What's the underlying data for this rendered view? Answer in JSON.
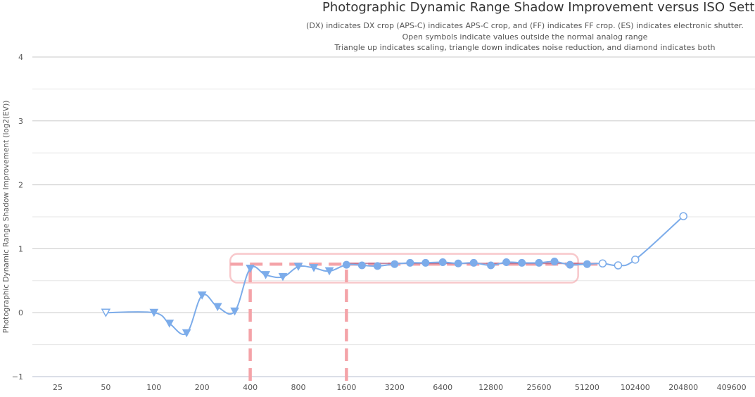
{
  "chart_data": {
    "type": "line",
    "title": "Photographic Dynamic Range Shadow Improvement versus ISO Setting",
    "subtitle_lines": [
      "(DX) indicates DX crop (APS-C) indicates APS-C crop, and (FF) indicates FF crop. (ES) indicates electronic shutter.",
      "Open symbols indicate values outside the normal analog range",
      "Triangle up indicates scaling, triangle down indicates noise reduction, and diamond indicates both"
    ],
    "ylabel": "Photographic Dynamic Range Shadow Improvement (log2(EV))",
    "xlabel": "",
    "x_scale": "log2",
    "x_ticks": [
      25,
      50,
      100,
      200,
      400,
      800,
      1600,
      3200,
      6400,
      12800,
      25600,
      51200,
      102400,
      204800,
      409600
    ],
    "y_ticks": [
      -1,
      0,
      1,
      2,
      3,
      4
    ],
    "ylim": [
      -1,
      4
    ],
    "grid": true,
    "series": [
      {
        "color": "#7cacea",
        "points": [
          {
            "x": 50,
            "y": 0,
            "marker": "triangle-down-open"
          },
          {
            "x": 100,
            "y": 0,
            "marker": "triangle-down"
          },
          {
            "x": 125,
            "y": -0.17,
            "marker": "triangle-down"
          },
          {
            "x": 160,
            "y": -0.32,
            "marker": "triangle-down"
          },
          {
            "x": 200,
            "y": 0.27,
            "marker": "triangle-down"
          },
          {
            "x": 250,
            "y": 0.09,
            "marker": "triangle-down"
          },
          {
            "x": 320,
            "y": 0.02,
            "marker": "triangle-down"
          },
          {
            "x": 400,
            "y": 0.69,
            "marker": "triangle-down"
          },
          {
            "x": 500,
            "y": 0.59,
            "marker": "triangle-down"
          },
          {
            "x": 640,
            "y": 0.56,
            "marker": "triangle-down"
          },
          {
            "x": 800,
            "y": 0.72,
            "marker": "triangle-down"
          },
          {
            "x": 1000,
            "y": 0.7,
            "marker": "triangle-down"
          },
          {
            "x": 1250,
            "y": 0.65,
            "marker": "triangle-down"
          },
          {
            "x": 1600,
            "y": 0.75,
            "marker": "circle"
          },
          {
            "x": 2000,
            "y": 0.74,
            "marker": "circle"
          },
          {
            "x": 2500,
            "y": 0.73,
            "marker": "circle"
          },
          {
            "x": 3200,
            "y": 0.76,
            "marker": "circle"
          },
          {
            "x": 4000,
            "y": 0.78,
            "marker": "circle"
          },
          {
            "x": 5000,
            "y": 0.78,
            "marker": "circle"
          },
          {
            "x": 6400,
            "y": 0.79,
            "marker": "circle"
          },
          {
            "x": 8000,
            "y": 0.77,
            "marker": "circle"
          },
          {
            "x": 10000,
            "y": 0.78,
            "marker": "circle"
          },
          {
            "x": 12800,
            "y": 0.74,
            "marker": "circle"
          },
          {
            "x": 16000,
            "y": 0.79,
            "marker": "circle"
          },
          {
            "x": 20000,
            "y": 0.78,
            "marker": "circle"
          },
          {
            "x": 25600,
            "y": 0.78,
            "marker": "circle"
          },
          {
            "x": 32000,
            "y": 0.8,
            "marker": "circle"
          },
          {
            "x": 40000,
            "y": 0.75,
            "marker": "circle"
          },
          {
            "x": 51200,
            "y": 0.76,
            "marker": "circle"
          },
          {
            "x": 64000,
            "y": 0.77,
            "marker": "circle-open"
          },
          {
            "x": 80000,
            "y": 0.74,
            "marker": "circle-open"
          },
          {
            "x": 102400,
            "y": 0.83,
            "marker": "circle-open"
          },
          {
            "x": 204800,
            "y": 1.51,
            "marker": "circle-open"
          }
        ]
      }
    ],
    "annotations": {
      "color": "#f4a3a8",
      "dashed_horizontal": {
        "y": 0.76,
        "x_from": 300,
        "x_to": 64000
      },
      "dashed_verticals": [
        {
          "x": 400,
          "y_from": -1,
          "y_to": 0.76
        },
        {
          "x": 1600,
          "y_from": -1,
          "y_to": 0.76
        }
      ],
      "box": {
        "x_from": 300,
        "x_to": 45000,
        "y_from": 0.47,
        "y_to": 0.92
      },
      "trend_line": {
        "x_from": 1600,
        "x_to": 51200,
        "y": 0.77,
        "color": "#b86a8a"
      }
    }
  }
}
